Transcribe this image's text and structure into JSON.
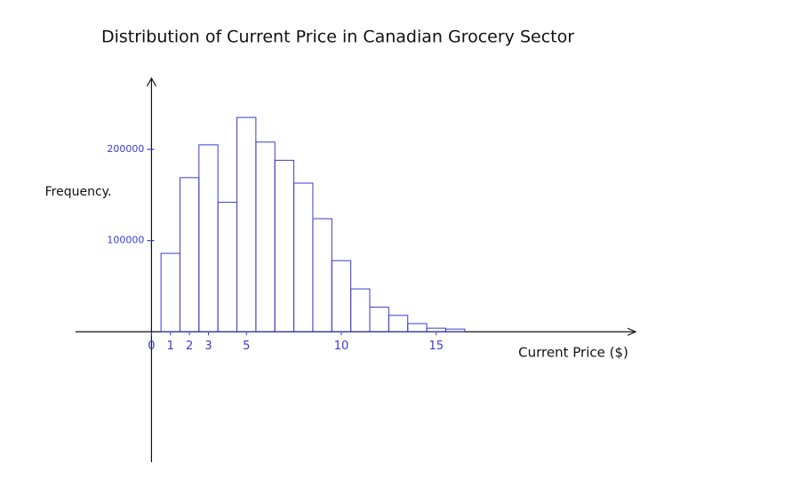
{
  "chart_data": {
    "type": "histogram",
    "title": "Distribution of Current Price in Canadian Grocery Sector",
    "x_label": "Current Price ($)",
    "y_label": "Frequency.",
    "bins": [
      0.5,
      1.5,
      2.5,
      3.5,
      4.5,
      5.5,
      6.5,
      7.5,
      8.5,
      9.5,
      10.5,
      11.5,
      12.5,
      13.5,
      14.5,
      15.5,
      16.5
    ],
    "values": [
      86000,
      169000,
      205000,
      142000,
      235000,
      208000,
      188000,
      163000,
      124000,
      78000,
      47000,
      27000,
      18000,
      9000,
      4000,
      3000
    ],
    "color": "#3b3bd4",
    "xlim": [
      -4,
      25.5
    ],
    "ylim": [
      -143000,
      278000
    ],
    "xticks": [
      0,
      1,
      2,
      3,
      5,
      10,
      15
    ],
    "yticks": [
      100000,
      200000
    ]
  }
}
